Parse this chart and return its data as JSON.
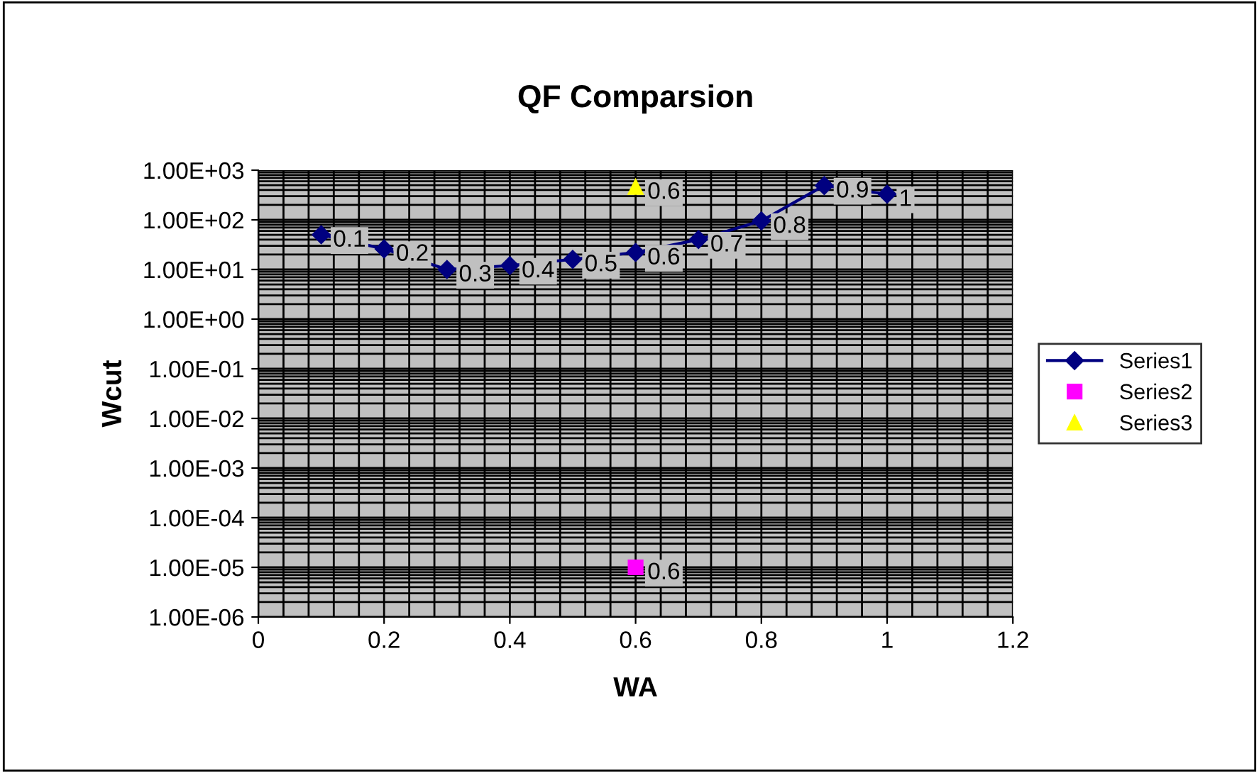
{
  "chart_data": {
    "type": "line",
    "title": "QF Comparsion",
    "xlabel": "WA",
    "ylabel": "Wcut",
    "log": "y",
    "xlim": [
      0,
      1.2
    ],
    "xticks": [
      0,
      0.2,
      0.4,
      0.6,
      0.8,
      1,
      1.2
    ],
    "ylim": [
      1e-06,
      1000
    ],
    "yticks": [
      {
        "value": 1e-06,
        "label": "1.00E-06"
      },
      {
        "value": 1e-05,
        "label": "1.00E-05"
      },
      {
        "value": 0.0001,
        "label": "1.00E-04"
      },
      {
        "value": 0.001,
        "label": "1.00E-03"
      },
      {
        "value": 0.01,
        "label": "1.00E-02"
      },
      {
        "value": 0.1,
        "label": "1.00E-01"
      },
      {
        "value": 1,
        "label": "1.00E+00"
      },
      {
        "value": 10,
        "label": "1.00E+01"
      },
      {
        "value": 100,
        "label": "1.00E+02"
      },
      {
        "value": 1000,
        "label": "1.00E+03"
      }
    ],
    "grid": true,
    "legend": "right",
    "series": [
      {
        "name": "Series1",
        "color": "#000080",
        "marker": "diamond",
        "x": [
          0.1,
          0.2,
          0.3,
          0.4,
          0.5,
          0.6,
          0.7,
          0.8,
          0.9,
          1
        ],
        "values": [
          50,
          26,
          10,
          12,
          16,
          22,
          40,
          95,
          490,
          330
        ]
      },
      {
        "name": "Series2",
        "color": "#ff00ff",
        "marker": "square",
        "type": "scatter",
        "x": [
          0.6
        ],
        "values": [
          1e-05
        ]
      },
      {
        "name": "Series3",
        "color": "#ffff00",
        "marker": "triangle",
        "type": "scatter",
        "x": [
          0.6
        ],
        "values": [
          460
        ]
      }
    ],
    "annotations": [
      {
        "text": "0.1",
        "x": 0.1,
        "y": 50
      },
      {
        "text": "0.2",
        "x": 0.2,
        "y": 26
      },
      {
        "text": "0.3",
        "x": 0.3,
        "y": 10
      },
      {
        "text": "0.4",
        "x": 0.4,
        "y": 12
      },
      {
        "text": "0.5",
        "x": 0.5,
        "y": 16
      },
      {
        "text": "0.6",
        "x": 0.6,
        "y": 22
      },
      {
        "text": "0.7",
        "x": 0.7,
        "y": 40
      },
      {
        "text": "0.8",
        "x": 0.8,
        "y": 95
      },
      {
        "text": "0.9",
        "x": 0.9,
        "y": 490
      },
      {
        "text": "1",
        "x": 1,
        "y": 330
      },
      {
        "text": "0.6",
        "x": 0.6,
        "y": 1e-05
      },
      {
        "text": "0.6",
        "x": 0.6,
        "y": 460
      }
    ]
  }
}
